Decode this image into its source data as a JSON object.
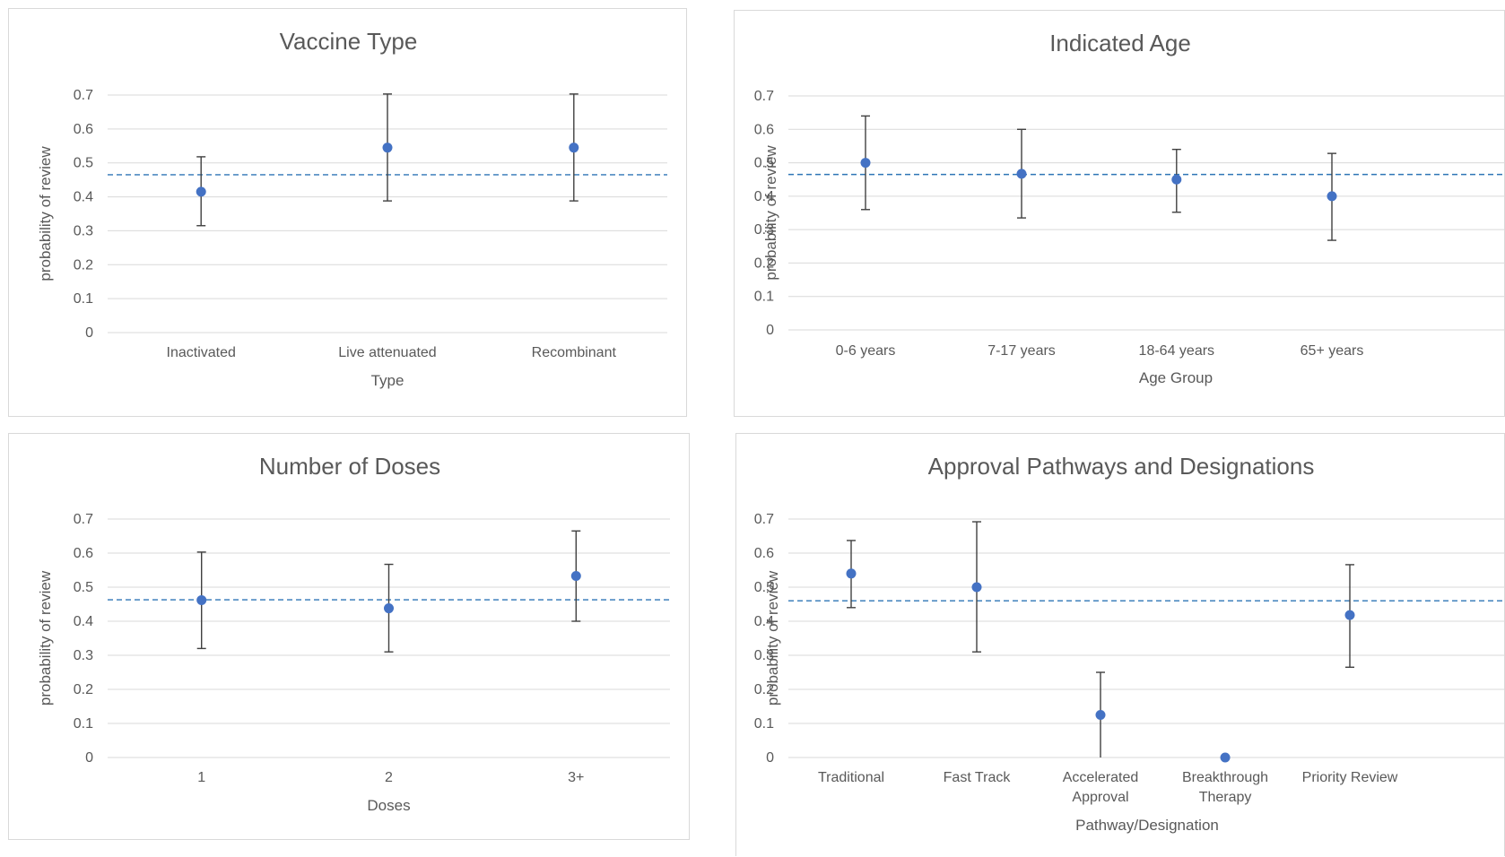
{
  "chart_data": [
    {
      "type": "scatter",
      "title": "Vaccine Type",
      "xlabel": "Type",
      "ylabel": "probability of review",
      "ylim": [
        0,
        0.7
      ],
      "yticks": [
        "0",
        "0.1",
        "0.2",
        "0.3",
        "0.4",
        "0.5",
        "0.6",
        "0.7"
      ],
      "reference_line": 0.465,
      "categories": [
        [
          "Inactivated"
        ],
        [
          "Live attenuated"
        ],
        [
          "Recombinant"
        ]
      ],
      "values": [
        0.415,
        0.545,
        0.545
      ],
      "error_low": [
        0.315,
        0.388,
        0.388
      ],
      "error_high": [
        0.518,
        0.703,
        0.703
      ],
      "grid": true,
      "point_color": "#4472c4",
      "reference_color": "#2e75b6"
    },
    {
      "type": "scatter",
      "title": "Indicated Age",
      "xlabel": "Age Group",
      "ylabel": "probability of review",
      "ylim": [
        0,
        0.7
      ],
      "yticks": [
        "0",
        "0.1",
        "0.2",
        "0.3",
        "0.4",
        "0.5",
        "0.6",
        "0.7"
      ],
      "reference_line": 0.465,
      "categories": [
        [
          "0-6 years"
        ],
        [
          "7-17 years"
        ],
        [
          "18-64 years"
        ],
        [
          "65+ years"
        ]
      ],
      "values": [
        0.5,
        0.467,
        0.45,
        0.4
      ],
      "error_low": [
        0.36,
        0.335,
        0.352,
        0.268
      ],
      "error_high": [
        0.64,
        0.6,
        0.54,
        0.528
      ],
      "grid": true,
      "point_color": "#4472c4",
      "reference_color": "#2e75b6"
    },
    {
      "type": "scatter",
      "title": "Number of Doses",
      "xlabel": "Doses",
      "ylabel": "probability of review",
      "ylim": [
        0,
        0.7
      ],
      "yticks": [
        "0",
        "0.1",
        "0.2",
        "0.3",
        "0.4",
        "0.5",
        "0.6",
        "0.7"
      ],
      "reference_line": 0.463,
      "categories": [
        [
          "1"
        ],
        [
          "2"
        ],
        [
          "3+"
        ]
      ],
      "values": [
        0.462,
        0.438,
        0.533
      ],
      "error_low": [
        0.32,
        0.31,
        0.4
      ],
      "error_high": [
        0.603,
        0.567,
        0.665
      ],
      "grid": true,
      "point_color": "#4472c4",
      "reference_color": "#2e75b6"
    },
    {
      "type": "scatter",
      "title": "Approval Pathways and Designations",
      "xlabel": "Pathway/Designation",
      "ylabel": "probability of review",
      "ylim": [
        0,
        0.7
      ],
      "yticks": [
        "0",
        "0.1",
        "0.2",
        "0.3",
        "0.4",
        "0.5",
        "0.6",
        "0.7"
      ],
      "reference_line": 0.46,
      "categories": [
        [
          "Traditional"
        ],
        [
          "Fast Track"
        ],
        [
          "Accelerated",
          "Approval"
        ],
        [
          "Breakthrough",
          "Therapy"
        ],
        [
          "Priority Review"
        ]
      ],
      "values": [
        0.54,
        0.5,
        0.125,
        0.0,
        0.418
      ],
      "error_low": [
        0.44,
        0.31,
        0.0,
        0.0,
        0.265
      ],
      "error_high": [
        0.637,
        0.692,
        0.25,
        0.0,
        0.566
      ],
      "grid": true,
      "point_color": "#4472c4",
      "reference_color": "#2e75b6"
    }
  ]
}
